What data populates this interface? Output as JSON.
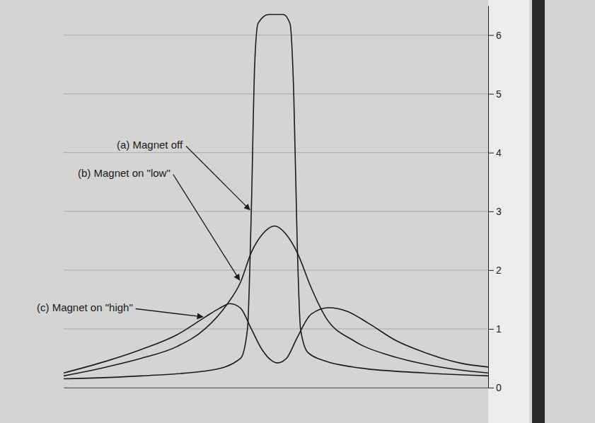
{
  "chart_data": {
    "type": "line",
    "xlim": [
      0,
      100
    ],
    "ylim": [
      0,
      6.5
    ],
    "yticks": [
      0,
      1,
      2,
      3,
      4,
      5,
      6
    ],
    "grid": true,
    "tick_labels": "y",
    "series": [
      {
        "name": "(a) Magnet off",
        "color": "#1a1a1a",
        "x": [
          0,
          18.3,
          35,
          41.7,
          43.3,
          44.2,
          45,
          45.8,
          48.3,
          51.7,
          53.3,
          54.2,
          55,
          55.8,
          57.5,
          61.7,
          68.3,
          85,
          100
        ],
        "values": [
          0.15,
          0.2,
          0.3,
          0.5,
          1.0,
          3,
          5.5,
          6.2,
          6.35,
          6.35,
          6.2,
          5,
          2.5,
          1.0,
          0.6,
          0.45,
          0.35,
          0.25,
          0.2
        ]
      },
      {
        "name": "(b) Magnet on \"low\"",
        "color": "#1a1a1a",
        "x": [
          0,
          10,
          18.3,
          26.7,
          33.3,
          38.3,
          41.7,
          44.2,
          46.7,
          49.7,
          52.5,
          55,
          58.3,
          61.7,
          68.3,
          76.7,
          85,
          93.3,
          100
        ],
        "values": [
          0.2,
          0.35,
          0.5,
          0.7,
          1.0,
          1.4,
          1.8,
          2.3,
          2.6,
          2.75,
          2.6,
          2.3,
          1.7,
          1.2,
          0.8,
          0.55,
          0.4,
          0.3,
          0.25
        ]
      },
      {
        "name": "(c) Magnet on \"high\"",
        "color": "#1a1a1a",
        "x": [
          0,
          10,
          18.3,
          26.7,
          33.3,
          36.7,
          39.2,
          41.7,
          44.2,
          46.7,
          49.2,
          50.3,
          52.5,
          55,
          58.3,
          62.5,
          66.7,
          71.7,
          78.3,
          85,
          93.3,
          100
        ],
        "values": [
          0.25,
          0.45,
          0.65,
          0.9,
          1.2,
          1.35,
          1.43,
          1.35,
          1.0,
          0.65,
          0.45,
          0.42,
          0.5,
          0.85,
          1.25,
          1.36,
          1.3,
          1.1,
          0.8,
          0.6,
          0.42,
          0.35
        ]
      }
    ]
  }
}
